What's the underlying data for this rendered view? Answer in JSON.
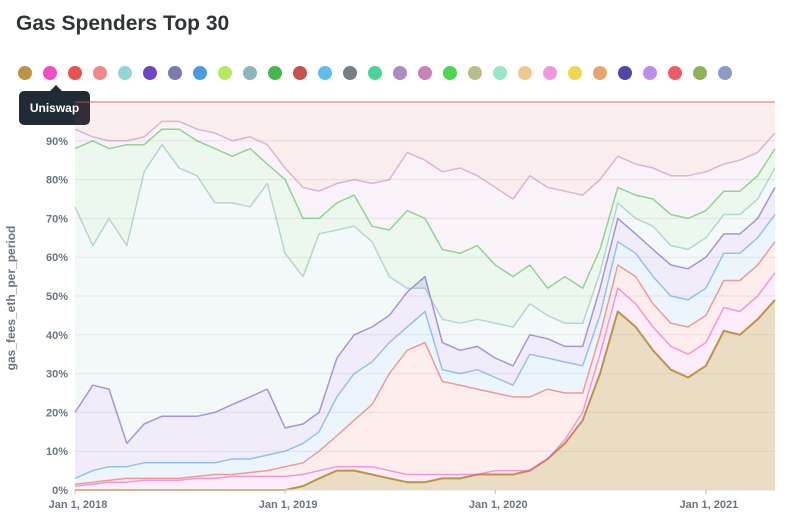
{
  "title": "Gas Spenders Top 30",
  "tooltip": {
    "label": "Uniswap"
  },
  "legend": {
    "colors": [
      "#bd9447",
      "#ef4fc0",
      "#e8524f",
      "#eb8a8a",
      "#94d4d5",
      "#6b46c8",
      "#7b79ad",
      "#4a9be3",
      "#b9e85c",
      "#8bb7b9",
      "#44b84c",
      "#c95050",
      "#5bbfef",
      "#787e88",
      "#4bd39b",
      "#ab8cbf",
      "#c484ba",
      "#4ed44f",
      "#b9bd88",
      "#95e8c8",
      "#ebc98f",
      "#f098de",
      "#f1d64f",
      "#e8a46c",
      "#5147a9",
      "#bc8de9",
      "#ef5a6b",
      "#8fb256",
      "#8e9bc4"
    ]
  },
  "chart_data": {
    "type": "area",
    "stacked": true,
    "normalized": true,
    "title": "Gas Spenders Top 30",
    "xlabel": "",
    "ylabel": "gas_fees_eth_per_period",
    "x_range": [
      "2018-01-01",
      "2021-05-01"
    ],
    "ylim": [
      0,
      100
    ],
    "x_ticks": [
      {
        "date": "2018-01-01",
        "label": "Jan 1, 2018"
      },
      {
        "date": "2019-01-01",
        "label": "Jan 1, 2019"
      },
      {
        "date": "2020-01-01",
        "label": "Jan 1, 2020"
      },
      {
        "date": "2021-01-01",
        "label": "Jan 1, 2021"
      }
    ],
    "y_ticks": [
      "0%",
      "10%",
      "20%",
      "30%",
      "40%",
      "50%",
      "60%",
      "70%",
      "80%",
      "90%"
    ],
    "grid": "horizontal",
    "tooltip_series": "Uniswap",
    "x": [
      "2018-01-01",
      "2018-02-01",
      "2018-03-01",
      "2018-04-01",
      "2018-05-01",
      "2018-06-01",
      "2018-07-01",
      "2018-08-01",
      "2018-09-01",
      "2018-10-01",
      "2018-11-01",
      "2018-12-01",
      "2019-01-01",
      "2019-02-01",
      "2019-03-01",
      "2019-04-01",
      "2019-05-01",
      "2019-06-01",
      "2019-07-01",
      "2019-08-01",
      "2019-09-01",
      "2019-10-01",
      "2019-11-01",
      "2019-12-01",
      "2020-01-01",
      "2020-02-01",
      "2020-03-01",
      "2020-04-01",
      "2020-05-01",
      "2020-06-01",
      "2020-07-01",
      "2020-08-01",
      "2020-09-01",
      "2020-10-01",
      "2020-11-01",
      "2020-12-01",
      "2021-01-01",
      "2021-02-01",
      "2021-03-01",
      "2021-04-01",
      "2021-05-01"
    ],
    "boundaries": [
      {
        "color": "#bd9447",
        "values": [
          0,
          0,
          0,
          0,
          0,
          0,
          0,
          0,
          0,
          0,
          0,
          0,
          0,
          1,
          3,
          5,
          5,
          4,
          3,
          2,
          2,
          3,
          3,
          4,
          4,
          4,
          5,
          8,
          12,
          18,
          30,
          46,
          42,
          36,
          31,
          29,
          32,
          41,
          40,
          44,
          49
        ]
      },
      {
        "color": "#ef4fc0",
        "values": [
          1,
          1.5,
          2,
          2,
          2.5,
          2.5,
          2.5,
          3,
          3,
          3.5,
          3.5,
          3.5,
          3.5,
          4,
          5,
          6,
          6,
          6,
          5,
          4,
          4,
          4,
          4,
          4,
          5,
          5,
          5,
          8,
          13,
          20,
          35,
          52,
          48,
          42,
          37,
          35,
          38,
          47,
          46,
          50,
          56
        ]
      },
      {
        "color": "#e8524f",
        "values": [
          1.5,
          2,
          2.5,
          3,
          3,
          3,
          3,
          3.5,
          4,
          4,
          4.5,
          5,
          6,
          7,
          10,
          14,
          18,
          22,
          30,
          36,
          38,
          28,
          27,
          26,
          25,
          24,
          24,
          26,
          25,
          25,
          40,
          58,
          55,
          48,
          43,
          42,
          45,
          54,
          54,
          58,
          64
        ]
      },
      {
        "color": "#4a9be3",
        "values": [
          3,
          5,
          6,
          6,
          7,
          7,
          7,
          7,
          7,
          8,
          8,
          9,
          10,
          12,
          15,
          24,
          30,
          33,
          38,
          42,
          46,
          31,
          30,
          31,
          29,
          27,
          35,
          34,
          33,
          32,
          45,
          64,
          61,
          55,
          50,
          49,
          52,
          61,
          61,
          65,
          71
        ]
      },
      {
        "color": "#6b46c8",
        "values": [
          20,
          27,
          26,
          12,
          17,
          19,
          19,
          19,
          20,
          22,
          24,
          26,
          16,
          17,
          20,
          34,
          40,
          42,
          45,
          51,
          55,
          38,
          36,
          37,
          34,
          32,
          40,
          39,
          37,
          37,
          52,
          70,
          66,
          62,
          58,
          57,
          60,
          66,
          66,
          70,
          78
        ]
      },
      {
        "color": "#8bb7b9",
        "values": [
          73,
          63,
          70,
          63,
          82,
          89,
          83,
          81,
          74,
          74,
          73,
          79,
          61,
          55,
          66,
          67,
          68,
          64,
          55,
          52,
          52,
          44,
          43,
          44,
          43,
          42,
          48,
          45,
          43,
          43,
          56,
          74,
          70,
          68,
          63,
          62,
          65,
          71,
          71,
          75,
          83
        ]
      },
      {
        "color": "#44b84c",
        "values": [
          88,
          90,
          88,
          89,
          89,
          93,
          93,
          90,
          88,
          86,
          88,
          84,
          80,
          70,
          70,
          74,
          76,
          68,
          67,
          72,
          70,
          62,
          61,
          63,
          58,
          55,
          58,
          52,
          55,
          52,
          62,
          78,
          76,
          75,
          71,
          70,
          72,
          77,
          77,
          81,
          88
        ]
      },
      {
        "color": "#c484ba",
        "values": [
          93,
          91,
          90,
          90,
          91,
          95,
          95,
          93,
          92,
          90,
          91,
          89,
          83,
          78,
          77,
          79,
          80,
          79,
          80,
          87,
          85,
          82,
          83,
          81,
          78,
          75,
          81,
          78,
          77,
          76,
          80,
          86,
          84,
          83,
          81,
          81,
          82,
          84,
          85,
          87,
          92
        ]
      },
      {
        "color": "#c95050",
        "values": [
          100,
          100,
          100,
          100,
          100,
          100,
          100,
          100,
          100,
          100,
          100,
          100,
          100,
          100,
          100,
          100,
          100,
          100,
          100,
          100,
          100,
          100,
          100,
          100,
          100,
          100,
          100,
          100,
          100,
          100,
          100,
          100,
          100,
          100,
          100,
          100,
          100,
          100,
          100,
          100,
          100
        ]
      }
    ]
  }
}
